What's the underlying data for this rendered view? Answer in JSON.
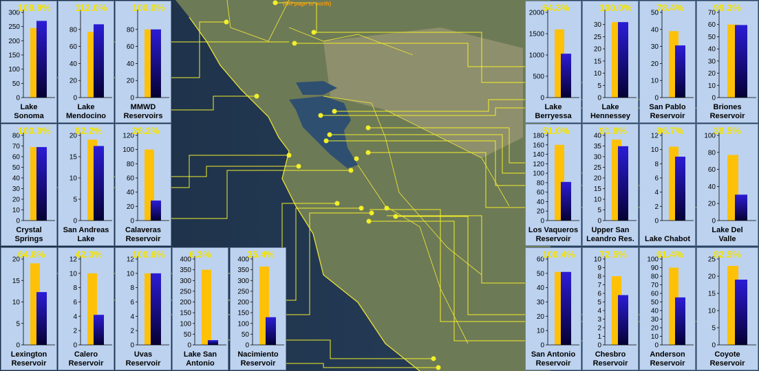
{
  "note": "(Off page to north)",
  "colors": {
    "capacity": "#ffc107",
    "storage_top": "#2b1cd6",
    "storage_bottom": "#050033",
    "panel": "#bcd2ef",
    "percent": "#f4e200",
    "leader": "#f2ef2a"
  },
  "chart_data": [
    {
      "type": "bar",
      "name": "Lake\nSonoma",
      "percent_label": "109.9%",
      "capacity": 245,
      "storage": 270,
      "yticks": [
        0,
        50,
        100,
        150,
        200,
        250,
        300
      ],
      "ylim": [
        0,
        300
      ]
    },
    {
      "type": "bar",
      "name": "Lake\nMendocino",
      "percent_label": "112.0%",
      "capacity": 77,
      "storage": 86,
      "yticks": [
        0,
        20,
        40,
        60,
        80
      ],
      "ylim": [
        0,
        100
      ]
    },
    {
      "type": "bar",
      "name": "MMWD\nReservoirs",
      "percent_label": "100.0%",
      "capacity": 80,
      "storage": 80,
      "yticks": [
        0,
        20,
        40,
        60,
        80
      ],
      "ylim": [
        0,
        100
      ]
    },
    {
      "type": "bar",
      "name": "Lake\nBerryessa",
      "percent_label": "64.3%",
      "capacity": 1600,
      "storage": 1030,
      "yticks": [
        0,
        500,
        1000,
        1500,
        2000
      ],
      "ylim": [
        0,
        2000
      ]
    },
    {
      "type": "bar",
      "name": "Lake\nHennessey",
      "percent_label": "100.0%",
      "capacity": 31,
      "storage": 31,
      "yticks": [
        0,
        5,
        10,
        15,
        20,
        25,
        30
      ],
      "ylim": [
        0,
        35
      ]
    },
    {
      "type": "bar",
      "name": "San Pablo\nReservoir",
      "percent_label": "78.4%",
      "capacity": 39,
      "storage": 30.6,
      "yticks": [
        0,
        10,
        20,
        30,
        40,
        50
      ],
      "ylim": [
        0,
        50
      ]
    },
    {
      "type": "bar",
      "name": "Briones\nReservoir",
      "percent_label": "99.3%",
      "capacity": 60,
      "storage": 59.6,
      "yticks": [
        0,
        10,
        20,
        30,
        40,
        50,
        60,
        70
      ],
      "ylim": [
        0,
        70
      ]
    },
    {
      "type": "bar",
      "name": "Crystal\nSprings",
      "percent_label": "100.0%",
      "capacity": 69,
      "storage": 69,
      "yticks": [
        0,
        10,
        20,
        30,
        40,
        50,
        60,
        70,
        80
      ],
      "ylim": [
        0,
        80
      ]
    },
    {
      "type": "bar",
      "name": "San Andreas\nLake",
      "percent_label": "92.2%",
      "capacity": 19,
      "storage": 17.5,
      "yticks": [
        0,
        5,
        10,
        15,
        20
      ],
      "ylim": [
        0,
        20
      ]
    },
    {
      "type": "bar",
      "name": "Calaveras\nReservoir",
      "percent_label": "28.2%",
      "capacity": 100,
      "storage": 28.2,
      "yticks": [
        0,
        20,
        40,
        60,
        80,
        100,
        120
      ],
      "ylim": [
        0,
        120
      ]
    },
    {
      "type": "bar",
      "name": "Los Vaqueros\nReservoir",
      "percent_label": "51.0%",
      "capacity": 160,
      "storage": 81.6,
      "yticks": [
        0,
        20,
        40,
        60,
        80,
        100,
        120,
        140,
        160,
        180
      ],
      "ylim": [
        0,
        180
      ]
    },
    {
      "type": "bar",
      "name": "Upper San\nLeandro Res.",
      "percent_label": "91.8%",
      "capacity": 38,
      "storage": 34.9,
      "yticks": [
        0,
        5,
        10,
        15,
        20,
        25,
        30,
        35,
        40
      ],
      "ylim": [
        0,
        40
      ]
    },
    {
      "type": "bar",
      "name": "Lake Chabot",
      "percent_label": "86.7%",
      "capacity": 10.4,
      "storage": 9,
      "yticks": [
        0,
        2,
        4,
        6,
        8,
        10,
        12
      ],
      "ylim": [
        0,
        12
      ]
    },
    {
      "type": "bar",
      "name": "Lake Del\nValle",
      "percent_label": "39.5%",
      "capacity": 77,
      "storage": 30.4,
      "yticks": [
        0,
        20,
        40,
        60,
        80,
        100
      ],
      "ylim": [
        0,
        100
      ]
    },
    {
      "type": "bar",
      "name": "Lexington\nReservoir",
      "percent_label": "64.8%",
      "capacity": 19,
      "storage": 12.3,
      "yticks": [
        0,
        5,
        10,
        15,
        20
      ],
      "ylim": [
        0,
        20
      ]
    },
    {
      "type": "bar",
      "name": "Calero\nReservoir",
      "percent_label": "42.3%",
      "capacity": 10,
      "storage": 4.2,
      "yticks": [
        0,
        2,
        4,
        6,
        8,
        10,
        12
      ],
      "ylim": [
        0,
        12
      ]
    },
    {
      "type": "bar",
      "name": "Uvas\nReservoir",
      "percent_label": "100.6%",
      "capacity": 10,
      "storage": 10,
      "yticks": [
        0,
        2,
        4,
        6,
        8,
        10,
        12
      ],
      "ylim": [
        0,
        12
      ]
    },
    {
      "type": "bar",
      "name": "Lake San\nAntonio",
      "percent_label": "6.3%",
      "capacity": 350,
      "storage": 22,
      "yticks": [
        0,
        50,
        100,
        150,
        200,
        250,
        300,
        350,
        400
      ],
      "ylim": [
        0,
        400
      ]
    },
    {
      "type": "bar",
      "name": "Nacimiento\nReservoir",
      "percent_label": "35.4%",
      "capacity": 365,
      "storage": 129,
      "yticks": [
        0,
        50,
        100,
        150,
        200,
        250,
        300,
        350,
        400
      ],
      "ylim": [
        0,
        400
      ]
    },
    {
      "type": "bar",
      "name": "San Antonio\nReservoir",
      "percent_label": "100.4%",
      "capacity": 51,
      "storage": 51,
      "yticks": [
        0,
        10,
        20,
        30,
        40,
        50,
        60
      ],
      "ylim": [
        0,
        60
      ]
    },
    {
      "type": "bar",
      "name": "Chesbro\nReservoir",
      "percent_label": "72.5%",
      "capacity": 8,
      "storage": 5.8,
      "yticks": [
        0,
        1,
        2,
        3,
        4,
        5,
        6,
        7,
        8,
        9,
        10
      ],
      "ylim": [
        0,
        10
      ]
    },
    {
      "type": "bar",
      "name": "Anderson\nReservoir",
      "percent_label": "61.4%",
      "capacity": 90,
      "storage": 55.3,
      "yticks": [
        0,
        10,
        20,
        30,
        40,
        50,
        60,
        70,
        80,
        90,
        100
      ],
      "ylim": [
        0,
        100
      ]
    },
    {
      "type": "bar",
      "name": "Coyote\nReservoir",
      "percent_label": "82.5%",
      "capacity": 23,
      "storage": 19,
      "yticks": [
        0,
        5,
        10,
        15,
        20,
        25
      ],
      "ylim": [
        0,
        25
      ]
    }
  ]
}
